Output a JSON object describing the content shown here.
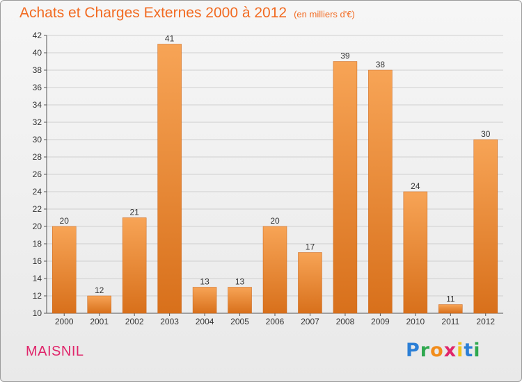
{
  "header": {
    "title": "Achats et Charges Externes 2000 à 2012",
    "unit": "(en milliers d'€)"
  },
  "footer": {
    "commune": "MAISNIL",
    "logo": {
      "letters": [
        "P",
        "r",
        "o",
        "x",
        "i",
        "t",
        "i"
      ],
      "colors": [
        "#2b7fd6",
        "#2fa84f",
        "#f28c1a",
        "#e0266b",
        "#f2c31a",
        "#2b7fd6",
        "#2fa84f"
      ]
    }
  },
  "colors": {
    "bar_light": "#f7a456",
    "bar_dark": "#d8701b",
    "title": "#f26b22",
    "commune": "#e0266b"
  },
  "chart_data": {
    "type": "bar",
    "title": "Achats et Charges Externes 2000 à 2012",
    "subtitle": "(en milliers d'€)",
    "categories": [
      "2000",
      "2001",
      "2002",
      "2003",
      "2004",
      "2005",
      "2006",
      "2007",
      "2008",
      "2009",
      "2010",
      "2011",
      "2012"
    ],
    "values": [
      20,
      12,
      21,
      41,
      13,
      13,
      20,
      17,
      39,
      38,
      24,
      11,
      30
    ],
    "ylim": [
      10,
      42
    ],
    "yticks": [
      10,
      12,
      14,
      16,
      18,
      20,
      22,
      24,
      26,
      28,
      30,
      32,
      34,
      36,
      38,
      40,
      42
    ],
    "grid": true,
    "data_labels": true
  }
}
